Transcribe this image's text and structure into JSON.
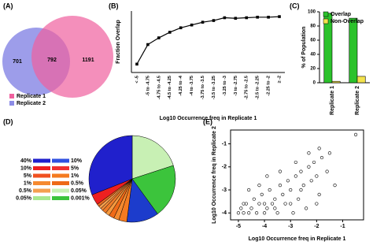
{
  "chart_data": [
    {
      "type": "venn",
      "title": "(A)",
      "series": [
        {
          "name": "Replicate 1",
          "color": "#f0609e"
        },
        {
          "name": "Replicate 2",
          "color": "#8c8ce6"
        }
      ],
      "values": [
        701,
        792,
        1191
      ]
    },
    {
      "type": "line",
      "title": "(B)",
      "ylabel": "Fraction Overlap",
      "xlabel": "Log10 Occurrence freq in Replicate 1",
      "categories": [
        "< -5",
        "-5 to -4.75",
        "-4.75 to -4.5",
        "-4.5 to -4.25",
        "-4.25 to -4",
        "-4 to -3.75",
        "-3.75 to -3.5",
        "-3.5 to -3.25",
        "-3.25 to -3",
        "-3 to -2.75",
        "-2.75 to -2.5",
        "-2.5 to -2.25",
        "-2.25 to -2",
        "≥ -2"
      ],
      "values": [
        0.15,
        0.5,
        0.62,
        0.72,
        0.8,
        0.85,
        0.9,
        0.93,
        0.98,
        0.97,
        0.98,
        0.99,
        0.99,
        1.0
      ],
      "color": "#000000",
      "ylim": [
        0,
        1.1
      ]
    },
    {
      "type": "bar",
      "title": "(C)",
      "ylabel": "% of Population",
      "categories": [
        "Replicate 1",
        "Replicate 2"
      ],
      "series": [
        {
          "name": "Overlap",
          "color": "#2bc22b",
          "values": [
            98,
            91
          ]
        },
        {
          "name": "Non-Overlap",
          "color": "#f3e24c",
          "values": [
            2,
            9
          ]
        }
      ],
      "ylim": [
        0,
        100
      ],
      "yticks": [
        0,
        20,
        40,
        60,
        80,
        100
      ]
    },
    {
      "type": "pie",
      "title": "(D)",
      "values": [
        20,
        20,
        12,
        3,
        2,
        2,
        1.5,
        1.5,
        1,
        1,
        1,
        4,
        31
      ],
      "colors": [
        "#c8f0b4",
        "#3cc43c",
        "#1c3ccc",
        "#f47a20",
        "#f58a30",
        "#f06a18",
        "#f59a40",
        "#ee7a28",
        "#f08838",
        "#f4a050",
        "#e86820",
        "#ee2020",
        "#2020cc"
      ],
      "legend": [
        [
          "40%",
          "#2020cc",
          "#3050e0",
          "10%"
        ],
        [
          "10%",
          "#ee2020",
          "#f03030",
          "5%"
        ],
        [
          "5%",
          "#f05020",
          "#f47a20",
          "1%"
        ],
        [
          "1%",
          "#f58a30",
          "#ee6a18",
          "0.5%"
        ],
        [
          "0.5%",
          "#f4a050",
          "#c8f0b4",
          "0.05%"
        ],
        [
          "0.05%",
          "#a8e890",
          "#3cc43c",
          "0.001%"
        ]
      ]
    },
    {
      "type": "scatter",
      "title": "(E)",
      "xlabel": "Log10 Occurrence freq in Replicate 1",
      "ylabel": "Log10 Occurrence freq in Replicate 2",
      "x": [
        -5,
        -4.9,
        -4.8,
        -4.7,
        -4.6,
        -4.5,
        -4.4,
        -4.3,
        -4.2,
        -4.1,
        -4,
        -3.9,
        -3.8,
        -3.7,
        -3.6,
        -3.5,
        -3.4,
        -3.3,
        -3.2,
        -3.1,
        -3,
        -2.9,
        -2.8,
        -2.7,
        -2.6,
        -2.5,
        -2.4,
        -2.3,
        -2.2,
        -2.1,
        -2,
        -1.9,
        -1.8,
        -1.6,
        -1.5,
        -1.3,
        -0.5,
        -4.6,
        -4.2,
        -3.9,
        -3.4,
        -2.8,
        -2.3,
        -1.9,
        -4.8,
        -4,
        -3.6,
        -3,
        -2.6,
        -2
      ],
      "y": [
        -4,
        -3.8,
        -4,
        -3.6,
        -4,
        -3.8,
        -3.4,
        -4,
        -3.6,
        -3.2,
        -4,
        -3.8,
        -3,
        -3.6,
        -3.4,
        -4,
        -2.8,
        -3.2,
        -3.6,
        -2.6,
        -3,
        -4,
        -2.4,
        -3.4,
        -2.2,
        -2.8,
        -3.8,
        -2,
        -2.6,
        -1.8,
        -2.4,
        -3.2,
        -1.6,
        -2.2,
        -1.4,
        -2.8,
        -0.6,
        -3,
        -2.8,
        -2.4,
        -2.2,
        -1.8,
        -1.4,
        -1.2,
        -3.6,
        -3.6,
        -3.8,
        -3.6,
        -3,
        -3.6
      ],
      "color": "#000000",
      "xlim": [
        -5.3,
        -0.2
      ],
      "xticks": [
        -5,
        -4,
        -3,
        -2,
        -1
      ],
      "ylim": [
        -4.3,
        -0.4
      ],
      "yticks": [
        -4,
        -3,
        -2,
        -1
      ]
    }
  ]
}
